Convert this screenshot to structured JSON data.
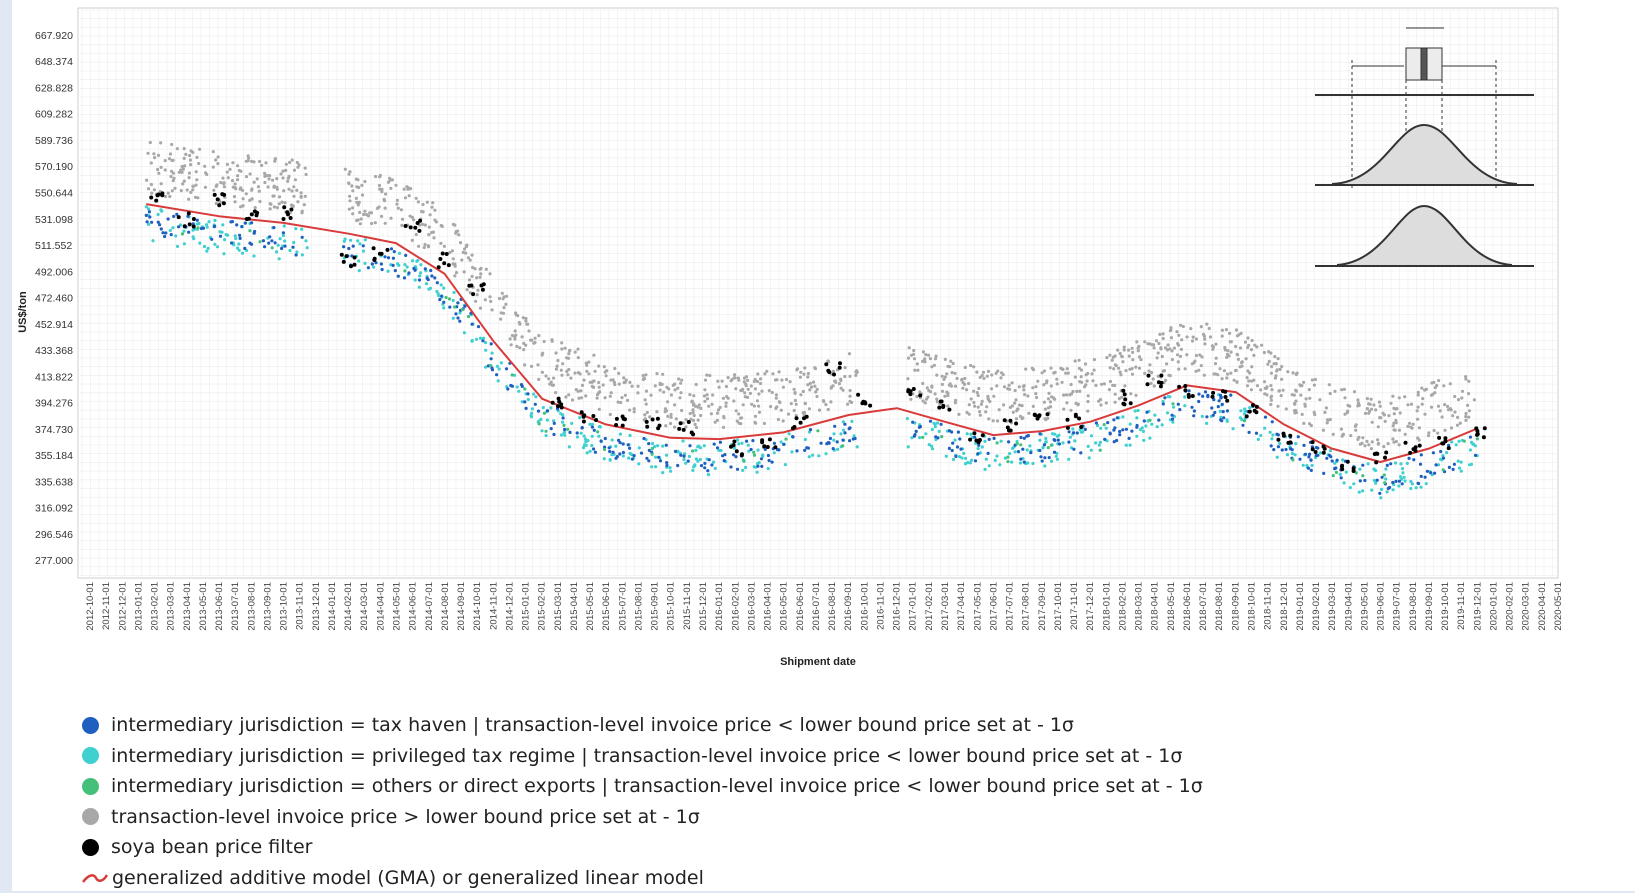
{
  "chart_data": {
    "type": "scatter",
    "title": "",
    "xlabel": "Shipment date",
    "ylabel": "US$/ton",
    "ylim": [
      277.0,
      667.92
    ],
    "y_ticks": [
      "667.920",
      "648.374",
      "628.828",
      "609.282",
      "589.736",
      "570.190",
      "550.644",
      "531.098",
      "511.552",
      "492.006",
      "472.460",
      "452.914",
      "433.368",
      "413.822",
      "394.276",
      "374.730",
      "355.184",
      "335.638",
      "316.092",
      "296.546",
      "277.000"
    ],
    "x_ticks": [
      "2012-10-01",
      "2012-11-01",
      "2012-12-01",
      "2013-01-01",
      "2013-02-01",
      "2013-03-01",
      "2013-04-01",
      "2013-05-01",
      "2013-06-01",
      "2013-07-01",
      "2013-08-01",
      "2013-09-01",
      "2013-10-01",
      "2013-11-01",
      "2013-12-01",
      "2014-01-01",
      "2014-02-01",
      "2014-03-01",
      "2014-04-01",
      "2014-05-01",
      "2014-06-01",
      "2014-07-01",
      "2014-08-01",
      "2014-09-01",
      "2014-10-01",
      "2014-11-01",
      "2014-12-01",
      "2015-01-01",
      "2015-02-01",
      "2015-03-01",
      "2015-04-01",
      "2015-05-01",
      "2015-06-01",
      "2015-07-01",
      "2015-08-01",
      "2015-09-01",
      "2015-10-01",
      "2015-11-01",
      "2015-12-01",
      "2016-01-01",
      "2016-02-01",
      "2016-03-01",
      "2016-04-01",
      "2016-05-01",
      "2016-06-01",
      "2016-07-01",
      "2016-08-01",
      "2016-09-01",
      "2016-10-01",
      "2016-11-01",
      "2016-12-01",
      "2017-01-01",
      "2017-02-01",
      "2017-03-01",
      "2017-04-01",
      "2017-05-01",
      "2017-06-01",
      "2017-07-01",
      "2017-08-01",
      "2017-09-01",
      "2017-10-01",
      "2017-11-01",
      "2017-12-01",
      "2018-01-01",
      "2018-02-01",
      "2018-03-01",
      "2018-04-01",
      "2018-05-01",
      "2018-06-01",
      "2018-07-01",
      "2018-08-01",
      "2018-09-01",
      "2018-10-01",
      "2018-11-01",
      "2018-12-01",
      "2019-01-01",
      "2019-02-01",
      "2019-03-01",
      "2019-04-01",
      "2019-05-01",
      "2019-06-01",
      "2019-07-01",
      "2019-08-01",
      "2019-09-01",
      "2019-10-01",
      "2019-11-01",
      "2019-12-01",
      "2020-01-01",
      "2020-02-01",
      "2020-03-01",
      "2020-04-01",
      "2020-05-01"
    ],
    "grid": true,
    "legend_position": "bottom",
    "series": [
      {
        "name": "intermediary jurisdiction = tax haven | transaction-level invoice price < lower bound price set at - 1σ",
        "color": "#1f5fbf",
        "kind": "points"
      },
      {
        "name": "intermediary jurisdiction = privileged tax regime | transaction-level invoice price < lower bound price set at - 1σ",
        "color": "#40d0d0",
        "kind": "points"
      },
      {
        "name": "intermediary jurisdiction = others or direct exports | transaction-level invoice price < lower bound price set at - 1σ",
        "color": "#45c07a",
        "kind": "points"
      },
      {
        "name": "transaction-level invoice price > lower bound price set at - 1σ",
        "color": "#a8a8a8",
        "kind": "points"
      },
      {
        "name": "soya bean price filter",
        "color": "#000000",
        "kind": "points"
      },
      {
        "name": "generalized additive model (GMA) or generalized linear model",
        "color": "#d93a3a",
        "kind": "line"
      }
    ],
    "filter_series": {
      "x": [
        "2013-02-01",
        "2013-04-01",
        "2013-06-01",
        "2013-08-01",
        "2013-10-01",
        "2014-02-01",
        "2014-04-01",
        "2014-06-01",
        "2014-08-01",
        "2014-10-01",
        "2015-03-01",
        "2015-05-01",
        "2015-07-01",
        "2015-09-01",
        "2015-11-01",
        "2016-02-01",
        "2016-04-01",
        "2016-06-01",
        "2016-08-01",
        "2016-10-01",
        "2017-01-01",
        "2017-03-01",
        "2017-05-01",
        "2017-07-01",
        "2017-09-01",
        "2017-11-01",
        "2018-02-01",
        "2018-04-01",
        "2018-06-01",
        "2018-08-01",
        "2018-10-01",
        "2018-12-01",
        "2019-02-01",
        "2019-04-01",
        "2019-06-01",
        "2019-08-01",
        "2019-10-01",
        "2019-12-01"
      ],
      "y": [
        548,
        530,
        545,
        535,
        536,
        500,
        505,
        525,
        500,
        480,
        395,
        385,
        382,
        380,
        375,
        360,
        362,
        380,
        420,
        395,
        400,
        393,
        368,
        378,
        383,
        380,
        398,
        410,
        403,
        398,
        388,
        368,
        360,
        345,
        352,
        360,
        365,
        372
      ]
    },
    "fit_series": {
      "x": [
        "2013-01-15",
        "2013-06-01",
        "2013-10-01",
        "2014-02-01",
        "2014-05-01",
        "2014-08-01",
        "2014-11-01",
        "2015-02-01",
        "2015-06-01",
        "2015-10-01",
        "2016-01-01",
        "2016-05-01",
        "2016-09-01",
        "2016-12-01",
        "2017-03-01",
        "2017-06-01",
        "2017-09-01",
        "2017-12-01",
        "2018-03-01",
        "2018-06-01",
        "2018-09-01",
        "2018-12-01",
        "2019-03-01",
        "2019-06-01",
        "2019-09-01",
        "2019-12-01"
      ],
      "y": [
        542,
        533,
        528,
        520,
        513,
        490,
        440,
        397,
        378,
        368,
        367,
        372,
        385,
        390,
        380,
        370,
        373,
        380,
        392,
        407,
        402,
        378,
        360,
        350,
        360,
        375
      ]
    }
  }
}
